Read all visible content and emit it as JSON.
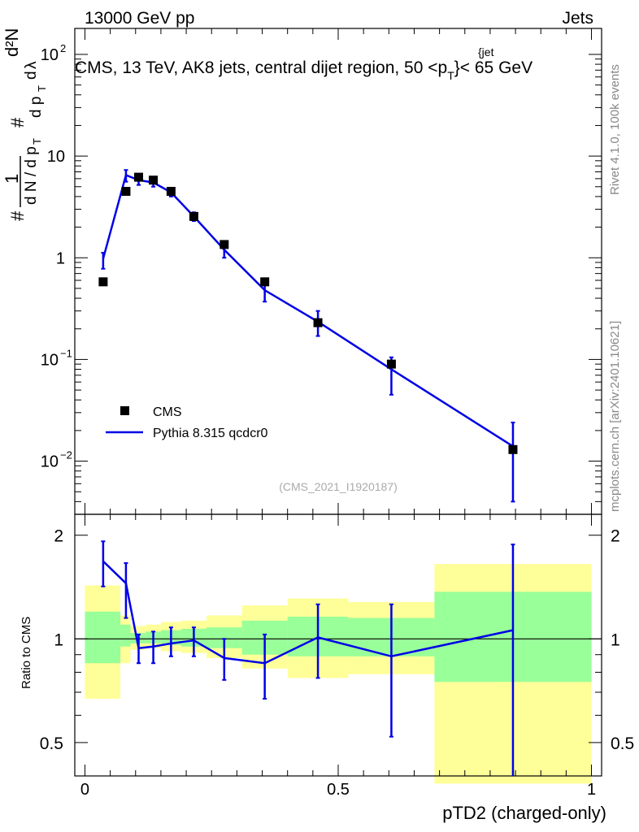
{
  "header": {
    "left": "13000 GeV pp",
    "right": "Jets"
  },
  "title": {
    "main": "CMS, 13 TeV, AK8 jets, central dijet region, 50 <p",
    "sub": "T",
    "sup": "{jet",
    "tail": "}< 65 GeV"
  },
  "side": {
    "top": "Rivet 4.1.0,  100k events",
    "bottom": "mcplots.cern.ch [arXiv:2401.10621]"
  },
  "watermark": "(CMS_2021_I1920187)",
  "legend": {
    "data": "CMS",
    "mc": "Pythia 8.315 qcdcr0"
  },
  "colors": {
    "mc": "#0000e6",
    "band_green": "#99ff99",
    "band_yellow": "#ffff99",
    "data": "#000000"
  },
  "chart_data": {
    "type": "scatter",
    "xlabel": "pTD2 (charged-only)",
    "ylabel_main": "1/dN/dp_T #/d p_T d^2N/dp_T dλ",
    "ylabel_ratio": "Ratio to CMS",
    "x_ticks": [
      "0",
      "0.5",
      "1"
    ],
    "y_ticks_main": [
      "10",
      "1"
    ],
    "y_ticks_ratio": [
      "2",
      "1",
      "0.5"
    ],
    "xlim": [
      -0.02,
      1.02
    ],
    "ylim_main": [
      0.003,
      180
    ],
    "ylim_ratio": [
      0.4,
      2.3
    ],
    "x": [
      0.036,
      0.081,
      0.106,
      0.135,
      0.17,
      0.215,
      0.275,
      0.355,
      0.46,
      0.605,
      0.845
    ],
    "bins": [
      [
        0,
        0.07
      ],
      [
        0.07,
        0.09
      ],
      [
        0.09,
        0.12
      ],
      [
        0.12,
        0.15
      ],
      [
        0.15,
        0.19
      ],
      [
        0.19,
        0.24
      ],
      [
        0.24,
        0.31
      ],
      [
        0.31,
        0.4
      ],
      [
        0.4,
        0.52
      ],
      [
        0.52,
        0.69
      ],
      [
        0.69,
        1.0
      ]
    ],
    "series": [
      {
        "name": "CMS",
        "values": [
          0.58,
          4.5,
          6.2,
          5.8,
          4.5,
          2.55,
          1.35,
          0.58,
          0.23,
          0.09,
          0.013
        ]
      },
      {
        "name": "Pythia 8.315 qcdcr0",
        "values": [
          0.98,
          6.5,
          5.8,
          5.5,
          4.4,
          2.55,
          1.2,
          0.48,
          0.235,
          0.08,
          0.014
        ],
        "err_low": [
          0.78,
          5.6,
          5.2,
          5.0,
          4.0,
          2.3,
          1.0,
          0.37,
          0.17,
          0.045,
          0.004
        ],
        "err_high": [
          1.12,
          7.3,
          6.4,
          6.1,
          4.8,
          2.8,
          1.45,
          0.6,
          0.3,
          0.105,
          0.024
        ]
      }
    ],
    "ratio": {
      "values": [
        1.68,
        1.45,
        0.94,
        0.95,
        0.97,
        0.99,
        0.88,
        0.85,
        1.01,
        0.89,
        1.06
      ],
      "err_low": [
        1.42,
        1.15,
        0.85,
        0.85,
        0.89,
        0.89,
        0.76,
        0.67,
        0.77,
        0.52,
        0.4
      ],
      "err_high": [
        1.92,
        1.66,
        1.03,
        1.05,
        1.08,
        1.08,
        1.0,
        1.03,
        1.26,
        1.26,
        1.88
      ],
      "band_inner": [
        [
          0.85,
          1.2
        ],
        [
          0.95,
          1.1
        ],
        [
          0.97,
          1.04
        ],
        [
          0.97,
          1.05
        ],
        [
          0.96,
          1.06
        ],
        [
          0.95,
          1.07
        ],
        [
          0.94,
          1.08
        ],
        [
          0.9,
          1.13
        ],
        [
          0.89,
          1.16
        ],
        [
          0.89,
          1.15
        ],
        [
          0.75,
          1.37
        ]
      ],
      "band_outer": [
        [
          0.67,
          1.43
        ],
        [
          0.85,
          1.17
        ],
        [
          0.93,
          1.09
        ],
        [
          0.94,
          1.1
        ],
        [
          0.92,
          1.12
        ],
        [
          0.91,
          1.13
        ],
        [
          0.88,
          1.17
        ],
        [
          0.82,
          1.25
        ],
        [
          0.77,
          1.31
        ],
        [
          0.79,
          1.28
        ],
        [
          0.38,
          1.65
        ]
      ]
    }
  }
}
